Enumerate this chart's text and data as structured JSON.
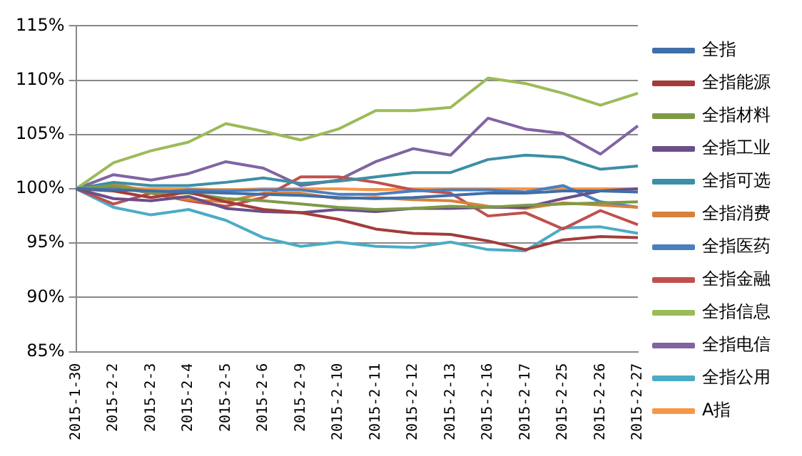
{
  "chart_data": {
    "type": "line",
    "categories": [
      "2015-1-30",
      "2015-2-2",
      "2015-2-3",
      "2015-2-4",
      "2015-2-5",
      "2015-2-6",
      "2015-2-9",
      "2015-2-10",
      "2015-2-11",
      "2015-2-12",
      "2015-2-13",
      "2015-2-16",
      "2015-2-17",
      "2015-2-25",
      "2015-2-26",
      "2015-2-27"
    ],
    "series": [
      {
        "name": "全指",
        "color": "#3f6fa8",
        "values": [
          100,
          99.9,
          99.8,
          99.7,
          99.6,
          99.5,
          99.4,
          99.2,
          99.1,
          99.2,
          99.4,
          99.6,
          99.6,
          99.8,
          99.8,
          99.7
        ]
      },
      {
        "name": "全指能源",
        "color": "#a33c3a",
        "values": [
          100,
          99.8,
          99.2,
          99.7,
          98.8,
          98.1,
          97.8,
          97.2,
          96.3,
          95.9,
          95.8,
          95.2,
          94.4,
          95.3,
          95.6,
          95.5
        ]
      },
      {
        "name": "全指材料",
        "color": "#7f9a45",
        "values": [
          100,
          100.3,
          99.6,
          99.6,
          99.1,
          98.9,
          98.6,
          98.3,
          98.1,
          98.2,
          98.4,
          98.3,
          98.5,
          98.6,
          98.7,
          98.8
        ]
      },
      {
        "name": "全指工业",
        "color": "#6a4f8a",
        "values": [
          100,
          99.1,
          98.9,
          99.3,
          98.2,
          97.9,
          97.8,
          98.1,
          97.9,
          98.2,
          98.2,
          98.3,
          98.3,
          99.1,
          99.8,
          100
        ]
      },
      {
        "name": "全指可选",
        "color": "#3c8fa5",
        "values": [
          100,
          100.6,
          100.3,
          100.3,
          100.6,
          101,
          100.5,
          100.7,
          101.1,
          101.5,
          101.5,
          102.7,
          103.1,
          102.9,
          101.8,
          102.1
        ]
      },
      {
        "name": "全指消费",
        "color": "#d6823b",
        "values": [
          100,
          100.5,
          99.7,
          99,
          98.8,
          99.6,
          99.6,
          99.1,
          99.2,
          99,
          98.9,
          98.4,
          98.2,
          98.7,
          98.5,
          98.3
        ]
      },
      {
        "name": "全指医药",
        "color": "#4a7fc0",
        "values": [
          100,
          100.2,
          99.6,
          99.9,
          99.8,
          99.9,
          99.9,
          99.5,
          99.5,
          99.8,
          99.9,
          99.9,
          99.7,
          100.3,
          98.8,
          98.3
        ]
      },
      {
        "name": "全指金融",
        "color": "#c0504d",
        "values": [
          100,
          98.6,
          99.6,
          98.9,
          98.4,
          99.2,
          101.1,
          101.1,
          100.6,
          99.9,
          99.6,
          97.5,
          97.8,
          96.3,
          98,
          96.7
        ]
      },
      {
        "name": "全指信息",
        "color": "#9bbb59",
        "values": [
          100,
          102.4,
          103.5,
          104.3,
          106,
          105.3,
          104.5,
          105.5,
          107.2,
          107.2,
          107.5,
          110.2,
          109.7,
          108.8,
          107.7,
          108.8
        ]
      },
      {
        "name": "全指电信",
        "color": "#8064a2",
        "values": [
          100,
          101.3,
          100.8,
          101.4,
          102.5,
          101.9,
          100.3,
          100.8,
          102.5,
          103.7,
          103.1,
          106.5,
          105.5,
          105.1,
          103.2,
          105.8
        ]
      },
      {
        "name": "全指公用",
        "color": "#4bacc6",
        "values": [
          100,
          98.3,
          97.6,
          98.1,
          97.1,
          95.5,
          94.7,
          95.1,
          94.7,
          94.6,
          95.1,
          94.4,
          94.3,
          96.4,
          96.5,
          95.9
        ]
      },
      {
        "name": "A指",
        "color": "#f79646",
        "values": [
          100,
          100.1,
          100,
          100,
          99.9,
          100,
          100,
          100,
          99.9,
          100,
          100,
          100,
          100,
          100,
          100,
          100
        ]
      }
    ],
    "ylim": [
      85,
      115
    ],
    "yticks": [
      {
        "value": 85,
        "label": "85%"
      },
      {
        "value": 90,
        "label": "90%"
      },
      {
        "value": 95,
        "label": "95%"
      },
      {
        "value": 100,
        "label": "100%"
      },
      {
        "value": 105,
        "label": "105%"
      },
      {
        "value": 110,
        "label": "110%"
      },
      {
        "value": 115,
        "label": "115%"
      }
    ],
    "grid": "y",
    "legend": "right",
    "marker": "none",
    "line_style": "solid"
  }
}
